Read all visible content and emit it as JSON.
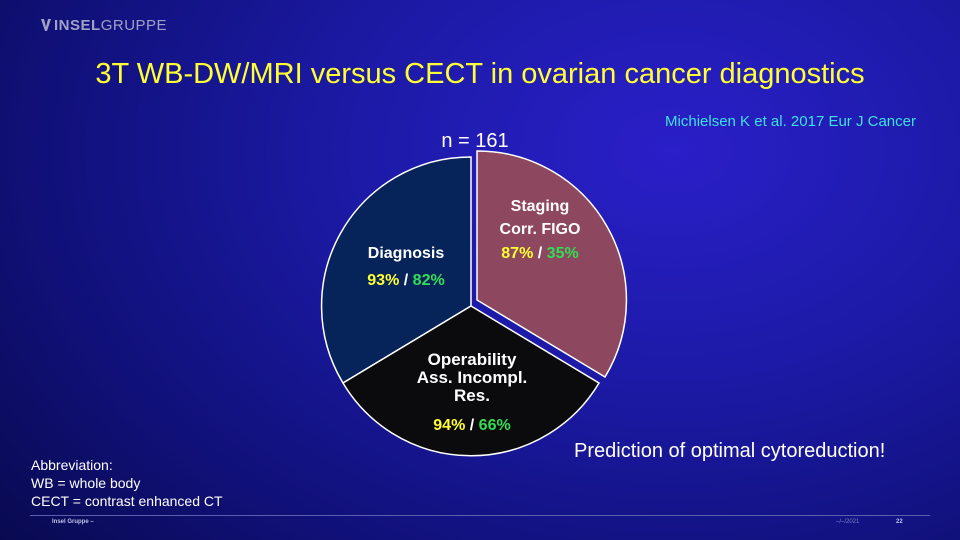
{
  "header": {
    "logo_prefix": "INSEL",
    "logo_suffix": "GRUPPE"
  },
  "slide": {
    "title": "3T WB-DW/MRI versus CECT in ovarian  cancer diagnostics",
    "reference": "Michielsen K et al. 2017 Eur J Cancer",
    "n_label": "n = 161",
    "segments": {
      "staging": {
        "line1": "Staging",
        "line2": "Corr. FIGO",
        "mri": "87%",
        "ct": "35%",
        "color": "#8d475e"
      },
      "operability": {
        "line1": "Operability",
        "line2": "Ass. Incompl.",
        "line3": "Res.",
        "mri": "94%",
        "ct": "66%",
        "color": "#0b0b0e"
      },
      "diagnosis": {
        "line1": "Diagnosis",
        "mri": "93%",
        "ct": "82%",
        "color": "#06235a"
      }
    },
    "separator": "/",
    "prediction": "Prediction of optimal cytoreduction!",
    "abbreviation": {
      "heading": "Abbreviation:",
      "wb": "WB = whole body",
      "cect": "CECT = contrast enhanced CT"
    }
  },
  "footer": {
    "left": "Insel Gruppe –",
    "date": "–/–/2021",
    "page": "22"
  }
}
